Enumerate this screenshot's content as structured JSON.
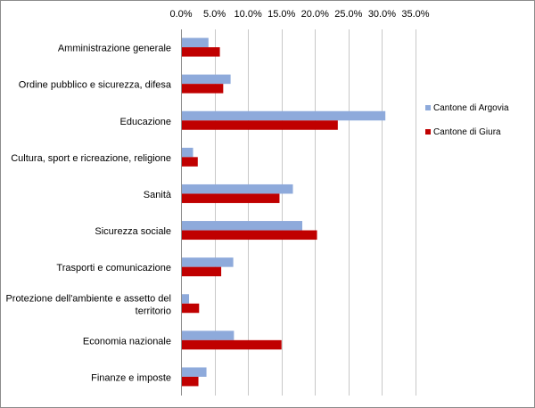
{
  "chart_data": {
    "type": "bar",
    "orientation": "horizontal",
    "title": "",
    "xlabel": "",
    "ylabel": "",
    "xlim": [
      0,
      35
    ],
    "x_ticks": [
      "0.0%",
      "5.0%",
      "10.0%",
      "15.0%",
      "20.0%",
      "25.0%",
      "30.0%",
      "35.0%"
    ],
    "x_axis_position": "top",
    "grid": "vertical",
    "legend_position": "right",
    "categories": [
      [
        "Amministrazione generale"
      ],
      [
        "Ordine pubblico e sicurezza, difesa"
      ],
      [
        "Educazione"
      ],
      [
        "Cultura, sport e ricreazione, religione"
      ],
      [
        "Sanità"
      ],
      [
        "Sicurezza sociale"
      ],
      [
        "Trasporti e comunicazione"
      ],
      [
        "Protezione dell'ambiente e assetto del",
        "territorio"
      ],
      [
        "Economia nazionale"
      ],
      [
        "Finanze e imposte"
      ]
    ],
    "series": [
      {
        "name": "Cantone di Argovia",
        "color": "#8eaadb",
        "values": [
          4.1,
          7.4,
          30.5,
          1.8,
          16.7,
          18.1,
          7.8,
          1.2,
          7.9,
          3.8
        ]
      },
      {
        "name": "Cantone di Giura",
        "color": "#c00000",
        "values": [
          5.8,
          6.3,
          23.4,
          2.5,
          14.7,
          20.3,
          6.0,
          2.7,
          15.0,
          2.6
        ]
      }
    ]
  }
}
